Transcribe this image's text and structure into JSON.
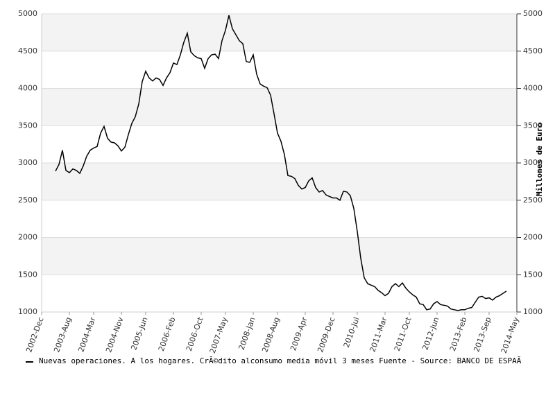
{
  "chart_data": {
    "type": "line",
    "y2label": "Millones de Euro",
    "categories": [
      "2002-Dec",
      null,
      null,
      null,
      null,
      null,
      null,
      null,
      "2003-Aug",
      null,
      null,
      null,
      null,
      null,
      null,
      "2004-Mar",
      null,
      null,
      null,
      null,
      null,
      null,
      null,
      "2004-Nov",
      null,
      null,
      null,
      null,
      null,
      null,
      "2005-Jun",
      null,
      null,
      null,
      null,
      null,
      null,
      null,
      "2006-Feb",
      null,
      null,
      null,
      null,
      null,
      null,
      null,
      "2006-Oct",
      null,
      null,
      null,
      null,
      null,
      null,
      "2007-May",
      null,
      null,
      null,
      null,
      null,
      null,
      null,
      "2008-Jan",
      null,
      null,
      null,
      null,
      null,
      null,
      "2008-Aug",
      null,
      null,
      null,
      null,
      null,
      null,
      null,
      "2009-Apr",
      null,
      null,
      null,
      null,
      null,
      null,
      null,
      "2009-Dec",
      null,
      null,
      null,
      null,
      null,
      null,
      "2010-Jul",
      null,
      null,
      null,
      null,
      null,
      null,
      null,
      "2011-Mar",
      null,
      null,
      null,
      null,
      null,
      null,
      "2011-Oct",
      null,
      null,
      null,
      null,
      null,
      null,
      null,
      "2012-Jun",
      null,
      null,
      null,
      null,
      null,
      null,
      null,
      "2013-Feb",
      null,
      null,
      null,
      null,
      null,
      null,
      "2013-Sep",
      null,
      null,
      null,
      null,
      null,
      null,
      null,
      "2014-May"
    ],
    "series": [
      {
        "name": "Nuevas operaciones. A los hogares. CrÃ©dito alconsumo media móvil 3 meses  Fuente - Source: BANCO DE ESPAÃ",
        "color": "#000000",
        "values": [
          null,
          null,
          null,
          null,
          2890,
          2980,
          3170,
          2900,
          2870,
          2920,
          2900,
          2860,
          2960,
          3090,
          3170,
          3200,
          3220,
          3400,
          3490,
          3330,
          3280,
          3270,
          3230,
          3160,
          3210,
          3380,
          3530,
          3620,
          3790,
          4090,
          4230,
          4140,
          4100,
          4140,
          4120,
          4040,
          4140,
          4210,
          4340,
          4320,
          4450,
          4620,
          4740,
          4490,
          4440,
          4410,
          4400,
          4270,
          4400,
          4450,
          4460,
          4400,
          4640,
          4780,
          4980,
          4800,
          4720,
          4640,
          4600,
          4360,
          4350,
          4450,
          4190,
          4060,
          4030,
          4010,
          3910,
          3660,
          3400,
          3290,
          3110,
          2830,
          2820,
          2790,
          2700,
          2650,
          2670,
          2760,
          2800,
          2670,
          2610,
          2630,
          2570,
          2550,
          2530,
          2530,
          2500,
          2620,
          2610,
          2560,
          2390,
          2080,
          1720,
          1460,
          1380,
          1360,
          1340,
          1290,
          1260,
          1220,
          1250,
          1340,
          1380,
          1340,
          1390,
          1320,
          1270,
          1230,
          1200,
          1110,
          1100,
          1030,
          1040,
          1110,
          1140,
          1100,
          1090,
          1080,
          1040,
          1030,
          1020,
          1030,
          1030,
          1050,
          1060,
          1130,
          1200,
          1210,
          1180,
          1190,
          1160,
          1200,
          1220,
          1250,
          1280,
          null,
          null,
          null
        ]
      }
    ],
    "ylim": [
      1000,
      5000
    ],
    "yticks": [
      1000,
      1500,
      2000,
      2500,
      3000,
      3500,
      4000,
      4500,
      5000
    ],
    "y2lim": [
      1000,
      5000
    ],
    "y2ticks": [
      1000,
      1500,
      2000,
      2500,
      3000,
      3500,
      4000,
      4500,
      5000
    ],
    "grid": true
  }
}
